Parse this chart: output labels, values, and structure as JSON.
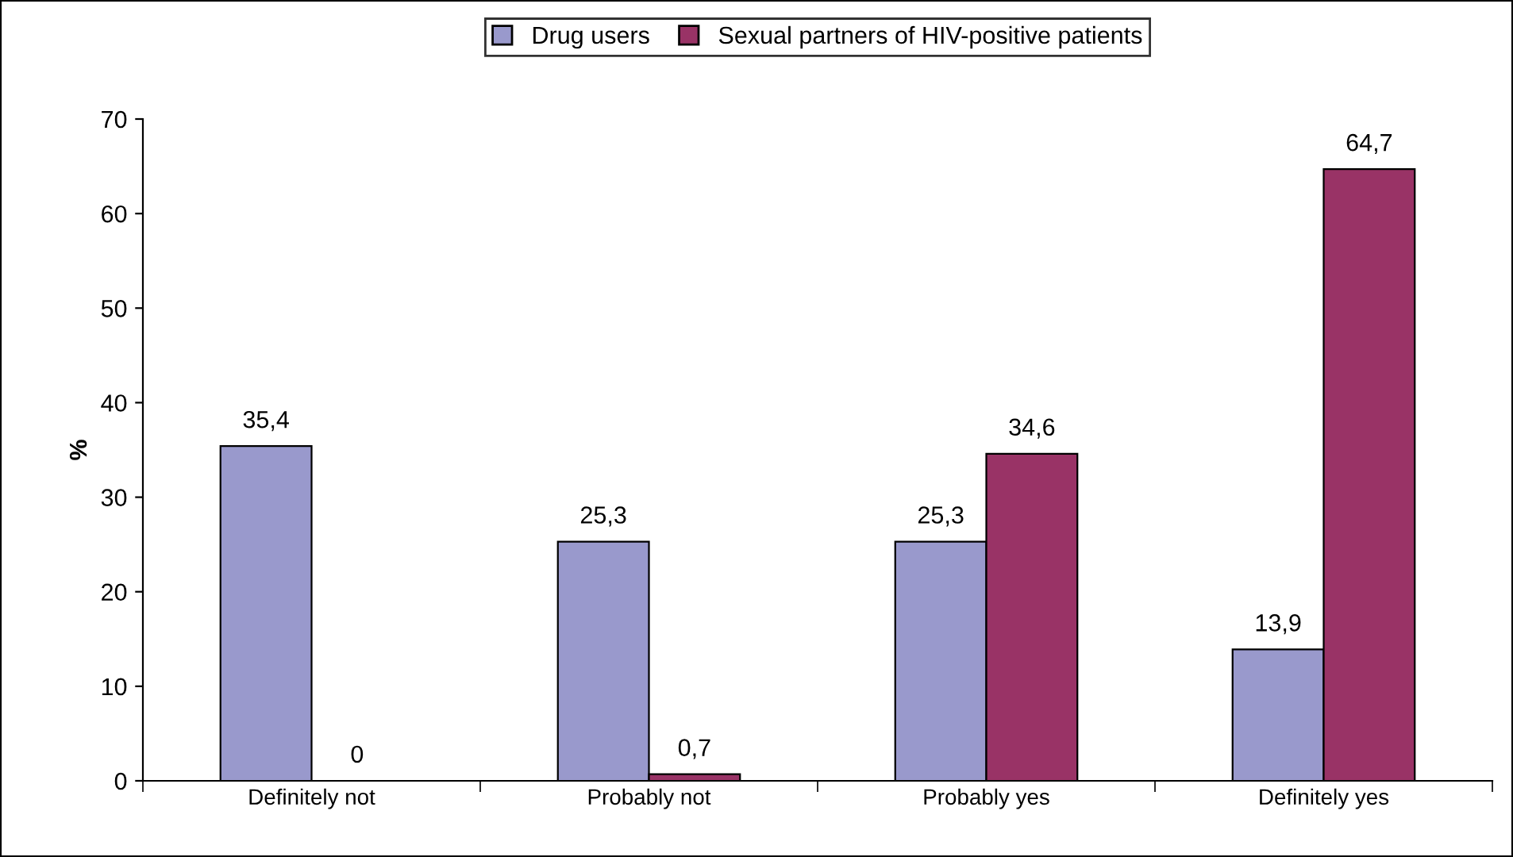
{
  "chart_data": {
    "type": "bar",
    "ylabel": "%",
    "categories": [
      "Definitely not",
      "Probably not",
      "Probably yes",
      "Definitely yes"
    ],
    "series": [
      {
        "name": "Drug users",
        "color": "#9999cc",
        "values": [
          35.4,
          25.3,
          25.3,
          13.9
        ],
        "value_labels": [
          "35,4",
          "25,3",
          "25,3",
          "13,9"
        ]
      },
      {
        "name": "Sexual partners of HIV-positive patients",
        "color": "#993366",
        "values": [
          0,
          0.7,
          34.6,
          64.7
        ],
        "value_labels": [
          "0",
          "0,7",
          "34,6",
          "64,7"
        ]
      }
    ],
    "ylim": [
      0,
      70
    ],
    "yticks": [
      0,
      10,
      20,
      30,
      40,
      50,
      60,
      70
    ],
    "grid": false,
    "legend": "top"
  }
}
